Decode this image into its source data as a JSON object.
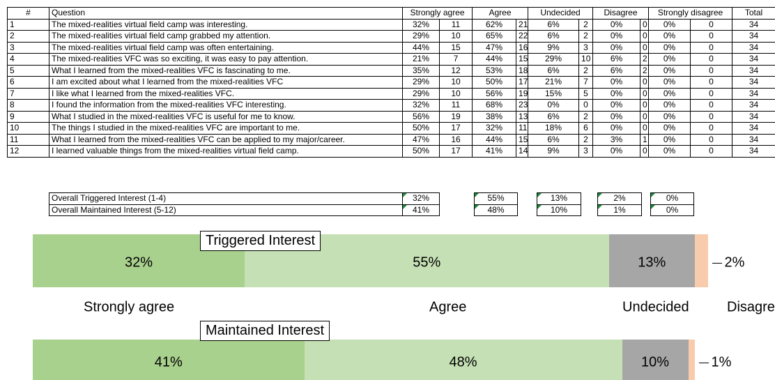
{
  "table": {
    "headers": [
      "#",
      "Question",
      "Strongly agree",
      "Agree",
      "Undecided",
      "Disagree",
      "Strongly disagree",
      "Total"
    ],
    "rows": [
      [
        "1",
        "The mixed-realities virtual field camp was interesting.",
        "32%",
        "11",
        "62%",
        "21",
        "6%",
        "2",
        "0%",
        "0",
        "0%",
        "0",
        "34"
      ],
      [
        "2",
        "The mixed-realities virtual field camp grabbed my attention.",
        "29%",
        "10",
        "65%",
        "22",
        "6%",
        "2",
        "0%",
        "0",
        "0%",
        "0",
        "34"
      ],
      [
        "3",
        "The mixed-realities virtual field camp was often entertaining.",
        "44%",
        "15",
        "47%",
        "16",
        "9%",
        "3",
        "0%",
        "0",
        "0%",
        "0",
        "34"
      ],
      [
        "4",
        "The mixed-realities VFC was so exciting, it was easy to pay attention.",
        "21%",
        "7",
        "44%",
        "15",
        "29%",
        "10",
        "6%",
        "2",
        "0%",
        "0",
        "34"
      ],
      [
        "5",
        "What I learned from the mixed-realities VFC is fascinating to me.",
        "35%",
        "12",
        "53%",
        "18",
        "6%",
        "2",
        "6%",
        "2",
        "0%",
        "0",
        "34"
      ],
      [
        "6",
        "I am excited about what I learned from the mixed-realities VFC",
        "29%",
        "10",
        "50%",
        "17",
        "21%",
        "7",
        "0%",
        "0",
        "0%",
        "0",
        "34"
      ],
      [
        "7",
        "I like what I learned from the mixed-realities VFC.",
        "29%",
        "10",
        "56%",
        "19",
        "15%",
        "5",
        "0%",
        "0",
        "0%",
        "0",
        "34"
      ],
      [
        "8",
        "I found the information from the mixed-realities VFC interesting.",
        "32%",
        "11",
        "68%",
        "23",
        "0%",
        "0",
        "0%",
        "0",
        "0%",
        "0",
        "34"
      ],
      [
        "9",
        "What I studied in the mixed-realities VFC is useful for me to know.",
        "56%",
        "19",
        "38%",
        "13",
        "6%",
        "2",
        "0%",
        "0",
        "0%",
        "0",
        "34"
      ],
      [
        "10",
        "The things I studied in the mixed-realities VFC are important to me.",
        "50%",
        "17",
        "32%",
        "11",
        "18%",
        "6",
        "0%",
        "0",
        "0%",
        "0",
        "34"
      ],
      [
        "11",
        "What I learned from the mixed-realities VFC can be applied to my major/career.",
        "47%",
        "16",
        "44%",
        "15",
        "6%",
        "2",
        "3%",
        "1",
        "0%",
        "0",
        "34"
      ],
      [
        "12",
        "I learned valuable things from the mixed-realities virtual field camp.",
        "50%",
        "17",
        "41%",
        "14",
        "9%",
        "3",
        "0%",
        "0",
        "0%",
        "0",
        "34"
      ]
    ]
  },
  "summary": {
    "rows": [
      [
        "Overall Triggered Interest (1-4)",
        "32%",
        "55%",
        "13%",
        "2%",
        "0%"
      ],
      [
        "Overall Maintained Interest (5-12)",
        "41%",
        "48%",
        "10%",
        "1%",
        "0%"
      ]
    ]
  },
  "bars": {
    "categories": [
      "Strongly agree",
      "Agree",
      "Undecided",
      "Disagree"
    ],
    "colors": [
      "#a9d18e",
      "#c5e0b4",
      "#a6a6a6",
      "#f8cbad"
    ],
    "series": [
      {
        "name": "Triggered Interest",
        "values": [
          32,
          55,
          13,
          2
        ],
        "value_labels": [
          "32%",
          "55%",
          "13%",
          "2%"
        ]
      },
      {
        "name": "Maintained Interest",
        "values": [
          41,
          48,
          10,
          1
        ],
        "value_labels": [
          "41%",
          "48%",
          "10%",
          "1%"
        ]
      }
    ]
  }
}
